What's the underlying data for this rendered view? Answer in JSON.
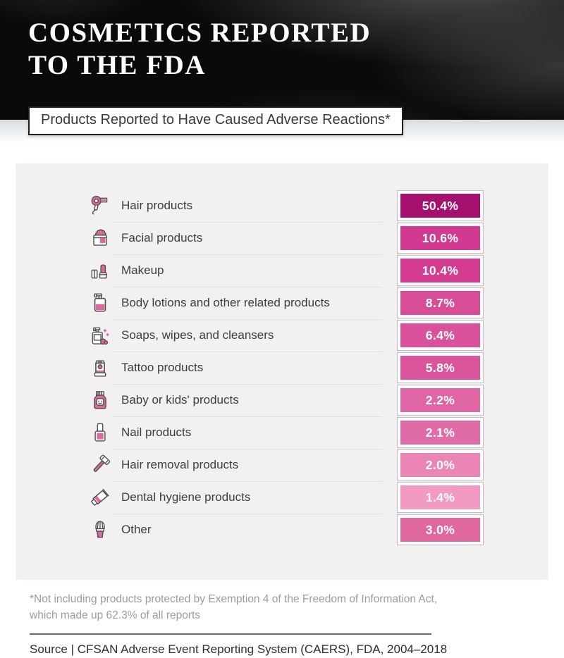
{
  "header": {
    "title_line1": "COSMETICS REPORTED",
    "title_line2": "TO THE FDA",
    "subtitle": "Products Reported to Have Caused Adverse Reactions*"
  },
  "chart_data": {
    "type": "bar",
    "title": "Products Reported to Have Caused Adverse Reactions",
    "unit": "%",
    "categories": [
      "Hair products",
      "Facial products",
      "Makeup",
      "Body lotions and other related products",
      "Soaps, wipes, and cleansers",
      "Tattoo products",
      "Baby or kids' products",
      "Nail products",
      "Hair removal products",
      "Dental hygiene products",
      "Other"
    ],
    "values": [
      50.4,
      10.6,
      10.4,
      8.7,
      6.4,
      5.8,
      2.2,
      2.1,
      2.0,
      1.4,
      3.0
    ],
    "legend": "none",
    "rows": [
      {
        "icon": "hair-dryer-icon",
        "label": "Hair products",
        "value": "50.4%",
        "color": "#a50f6e"
      },
      {
        "icon": "cream-jar-icon",
        "label": "Facial products",
        "value": "10.6%",
        "color": "#d23a92"
      },
      {
        "icon": "lipstick-icon",
        "label": "Makeup",
        "value": "10.4%",
        "color": "#d33c91"
      },
      {
        "icon": "lotion-pump-icon",
        "label": "Body lotions and other related products",
        "value": "8.7%",
        "color": "#d74d98"
      },
      {
        "icon": "soap-dispenser-icon",
        "label": "Soaps, wipes, and cleansers",
        "value": "6.4%",
        "color": "#d9519a"
      },
      {
        "icon": "tattoo-tube-icon",
        "label": "Tattoo products",
        "value": "5.8%",
        "color": "#d9549b"
      },
      {
        "icon": "baby-bottle-icon",
        "label": "Baby or kids' products",
        "value": "2.2%",
        "color": "#de66a2"
      },
      {
        "icon": "nail-polish-icon",
        "label": "Nail products",
        "value": "2.1%",
        "color": "#e06ca7"
      },
      {
        "icon": "razor-icon",
        "label": "Hair removal products",
        "value": "2.0%",
        "color": "#ea85b6"
      },
      {
        "icon": "toothpaste-icon",
        "label": "Dental hygiene products",
        "value": "1.4%",
        "color": "#f29ac1"
      },
      {
        "icon": "shaving-brush-icon",
        "label": "Other",
        "value": "3.0%",
        "color": "#e0679f"
      }
    ]
  },
  "footer": {
    "note_line1": "*Not including products protected by Exemption 4 of the Freedom of Information Act,",
    "note_line2": "which made up 62.3% of all reports",
    "source": "Source | CFSAN Adverse Event Reporting System (CAERS), FDA, 2004–2018"
  },
  "colors": {
    "accent_dark": "#a50f6e",
    "accent": "#d23a92",
    "card_bg": "#f2f0f0",
    "header_bg": "#0a0a0a"
  }
}
